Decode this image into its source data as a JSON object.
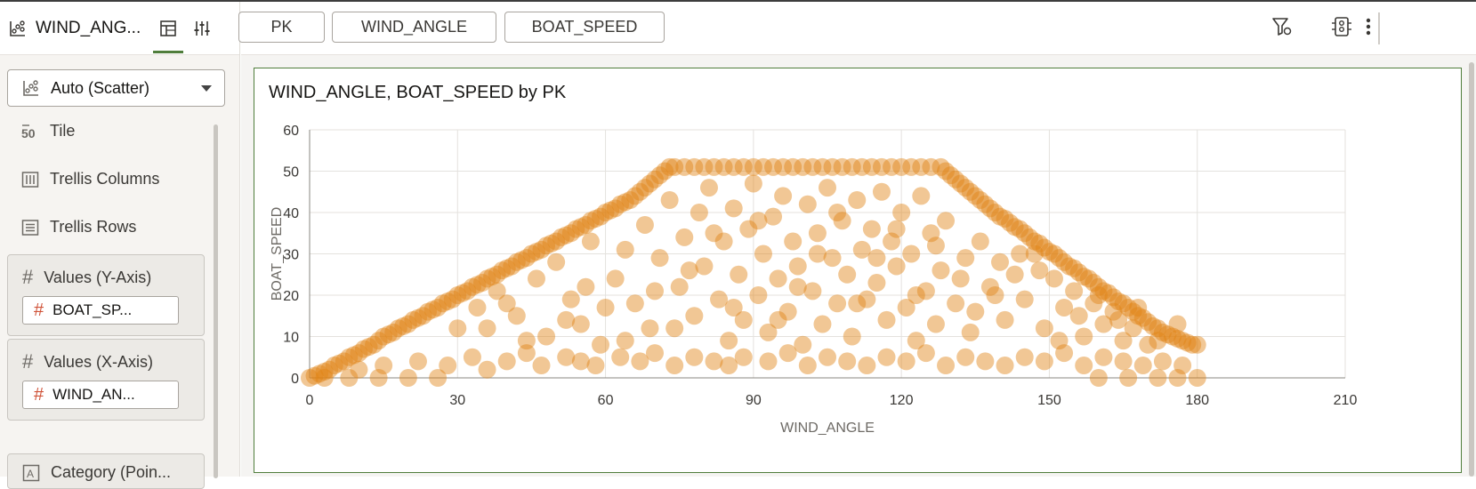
{
  "topbar": {
    "viz_title": "WIND_ANG...",
    "pills": [
      "PK",
      "WIND_ANGLE",
      "BOAT_SPEED"
    ]
  },
  "left_panel": {
    "viz_type": "Auto (Scatter)",
    "rows": [
      "Tile",
      "Trellis Columns",
      "Trellis Rows"
    ],
    "tile_icon_text": "50",
    "y_well": {
      "label": "Values (Y-Axis)",
      "chip": "BOAT_SP..."
    },
    "x_well": {
      "label": "Values (X-Axis)",
      "chip": "WIND_AN..."
    },
    "category_well": {
      "label": "Category (Poin..."
    }
  },
  "colors": {
    "accent": "#4f7d3b",
    "series": "#e08314",
    "measure_hash": "#d0543a"
  },
  "chart_data": {
    "type": "scatter",
    "title": "WIND_ANGLE, BOAT_SPEED by PK",
    "xlabel": "WIND_ANGLE",
    "ylabel": "BOAT_SPEED",
    "xlim": [
      0,
      210
    ],
    "ylim": [
      0,
      60
    ],
    "xticks": [
      "0",
      "30",
      "60",
      "90",
      "120",
      "150",
      "180",
      "210"
    ],
    "yticks": [
      "0",
      "10",
      "20",
      "30",
      "40",
      "50",
      "60"
    ],
    "grid": true,
    "legend": "none",
    "series": [
      {
        "color": "#e08314",
        "points": [
          [
            0,
            0
          ],
          [
            1,
            0.5
          ],
          [
            2,
            1
          ],
          [
            3,
            1.5
          ],
          [
            4,
            2
          ],
          [
            5,
            3
          ],
          [
            6,
            3.5
          ],
          [
            7,
            4
          ],
          [
            8,
            5
          ],
          [
            9,
            5.5
          ],
          [
            10,
            6
          ],
          [
            11,
            7
          ],
          [
            12,
            7.5
          ],
          [
            13,
            8
          ],
          [
            14,
            9
          ],
          [
            15,
            10
          ],
          [
            16,
            10.5
          ],
          [
            17,
            11
          ],
          [
            18,
            12
          ],
          [
            19,
            12.5
          ],
          [
            20,
            13
          ],
          [
            21,
            14
          ],
          [
            22,
            14.5
          ],
          [
            23,
            15
          ],
          [
            24,
            16
          ],
          [
            25,
            16.5
          ],
          [
            26,
            17
          ],
          [
            27,
            18
          ],
          [
            28,
            18.5
          ],
          [
            29,
            19
          ],
          [
            30,
            20
          ],
          [
            31,
            20.5
          ],
          [
            32,
            21
          ],
          [
            33,
            22
          ],
          [
            34,
            22.5
          ],
          [
            35,
            23
          ],
          [
            36,
            24
          ],
          [
            37,
            24.5
          ],
          [
            38,
            25
          ],
          [
            39,
            26
          ],
          [
            40,
            26.5
          ],
          [
            41,
            27
          ],
          [
            42,
            28
          ],
          [
            43,
            28.5
          ],
          [
            44,
            29
          ],
          [
            45,
            30
          ],
          [
            46,
            30.5
          ],
          [
            47,
            31
          ],
          [
            48,
            32
          ],
          [
            49,
            32.5
          ],
          [
            50,
            33
          ],
          [
            51,
            34
          ],
          [
            52,
            34.5
          ],
          [
            53,
            35
          ],
          [
            54,
            36
          ],
          [
            55,
            36.5
          ],
          [
            56,
            37
          ],
          [
            57,
            38
          ],
          [
            58,
            38.5
          ],
          [
            59,
            39
          ],
          [
            60,
            40
          ],
          [
            61,
            40.5
          ],
          [
            62,
            41
          ],
          [
            63,
            42
          ],
          [
            64,
            42.5
          ],
          [
            65,
            43
          ],
          [
            66,
            44
          ],
          [
            67,
            45
          ],
          [
            68,
            46
          ],
          [
            69,
            47
          ],
          [
            70,
            48
          ],
          [
            71,
            49
          ],
          [
            72,
            50
          ],
          [
            73,
            51
          ],
          [
            74,
            51
          ],
          [
            76,
            51
          ],
          [
            78,
            51
          ],
          [
            80,
            51
          ],
          [
            82,
            51
          ],
          [
            84,
            51
          ],
          [
            86,
            51
          ],
          [
            88,
            51
          ],
          [
            90,
            51
          ],
          [
            92,
            51
          ],
          [
            94,
            51
          ],
          [
            96,
            51
          ],
          [
            98,
            51
          ],
          [
            100,
            51
          ],
          [
            102,
            51
          ],
          [
            104,
            51
          ],
          [
            106,
            51
          ],
          [
            108,
            51
          ],
          [
            110,
            51
          ],
          [
            112,
            51
          ],
          [
            114,
            51
          ],
          [
            116,
            51
          ],
          [
            118,
            51
          ],
          [
            120,
            51
          ],
          [
            122,
            51
          ],
          [
            124,
            51
          ],
          [
            126,
            51
          ],
          [
            128,
            51
          ],
          [
            129,
            50
          ],
          [
            130,
            49
          ],
          [
            131,
            48
          ],
          [
            132,
            47
          ],
          [
            133,
            46
          ],
          [
            134,
            45
          ],
          [
            135,
            44
          ],
          [
            136,
            43
          ],
          [
            137,
            42
          ],
          [
            138,
            41
          ],
          [
            139,
            40
          ],
          [
            140,
            39
          ],
          [
            141,
            38.5
          ],
          [
            142,
            37.5
          ],
          [
            143,
            36.5
          ],
          [
            144,
            36
          ],
          [
            145,
            35
          ],
          [
            146,
            34
          ],
          [
            147,
            33
          ],
          [
            148,
            32.5
          ],
          [
            149,
            31.5
          ],
          [
            150,
            30.5
          ],
          [
            151,
            30
          ],
          [
            152,
            29
          ],
          [
            153,
            28
          ],
          [
            154,
            27
          ],
          [
            155,
            26.5
          ],
          [
            156,
            25.5
          ],
          [
            157,
            24.5
          ],
          [
            158,
            24
          ],
          [
            159,
            23
          ],
          [
            160,
            22
          ],
          [
            161,
            21
          ],
          [
            162,
            20.5
          ],
          [
            163,
            19.5
          ],
          [
            164,
            18.5
          ],
          [
            165,
            18
          ],
          [
            166,
            17
          ],
          [
            167,
            16
          ],
          [
            168,
            15
          ],
          [
            169,
            14.5
          ],
          [
            170,
            13.5
          ],
          [
            171,
            12.5
          ],
          [
            172,
            12
          ],
          [
            173,
            11
          ],
          [
            174,
            10.5
          ],
          [
            175,
            10
          ],
          [
            176,
            9.5
          ],
          [
            177,
            9
          ],
          [
            178,
            8.5
          ],
          [
            179,
            8
          ],
          [
            180,
            8
          ],
          [
            3,
            0
          ],
          [
            8,
            0
          ],
          [
            14,
            0
          ],
          [
            20,
            0
          ],
          [
            26,
            0
          ],
          [
            160,
            0
          ],
          [
            166,
            0
          ],
          [
            172,
            0
          ],
          [
            176,
            0
          ],
          [
            180,
            0
          ],
          [
            10,
            2
          ],
          [
            15,
            3
          ],
          [
            22,
            4
          ],
          [
            28,
            3
          ],
          [
            33,
            5
          ],
          [
            36,
            2
          ],
          [
            40,
            4
          ],
          [
            44,
            6
          ],
          [
            47,
            3
          ],
          [
            52,
            5
          ],
          [
            55,
            4
          ],
          [
            58,
            3
          ],
          [
            63,
            5
          ],
          [
            67,
            4
          ],
          [
            70,
            6
          ],
          [
            74,
            3
          ],
          [
            78,
            5
          ],
          [
            82,
            4
          ],
          [
            85,
            3
          ],
          [
            88,
            5
          ],
          [
            93,
            4
          ],
          [
            97,
            6
          ],
          [
            101,
            3
          ],
          [
            105,
            5
          ],
          [
            109,
            4
          ],
          [
            113,
            3
          ],
          [
            117,
            5
          ],
          [
            121,
            4
          ],
          [
            125,
            6
          ],
          [
            129,
            3
          ],
          [
            133,
            5
          ],
          [
            137,
            4
          ],
          [
            141,
            3
          ],
          [
            145,
            5
          ],
          [
            149,
            4
          ],
          [
            153,
            6
          ],
          [
            157,
            3
          ],
          [
            161,
            5
          ],
          [
            165,
            4
          ],
          [
            169,
            3
          ],
          [
            173,
            4
          ],
          [
            177,
            3
          ],
          [
            30,
            12
          ],
          [
            34,
            17
          ],
          [
            38,
            21
          ],
          [
            42,
            15
          ],
          [
            46,
            24
          ],
          [
            48,
            10
          ],
          [
            50,
            28
          ],
          [
            53,
            19
          ],
          [
            55,
            13
          ],
          [
            57,
            33
          ],
          [
            59,
            8
          ],
          [
            62,
            24
          ],
          [
            64,
            31
          ],
          [
            66,
            18
          ],
          [
            68,
            37
          ],
          [
            69,
            12
          ],
          [
            71,
            29
          ],
          [
            73,
            43
          ],
          [
            75,
            22
          ],
          [
            76,
            34
          ],
          [
            78,
            15
          ],
          [
            79,
            40
          ],
          [
            80,
            27
          ],
          [
            81,
            46
          ],
          [
            83,
            19
          ],
          [
            84,
            33
          ],
          [
            85,
            9
          ],
          [
            86,
            41
          ],
          [
            87,
            25
          ],
          [
            88,
            14
          ],
          [
            89,
            36
          ],
          [
            90,
            47
          ],
          [
            91,
            20
          ],
          [
            92,
            30
          ],
          [
            93,
            11
          ],
          [
            94,
            39
          ],
          [
            95,
            24
          ],
          [
            96,
            44
          ],
          [
            97,
            16
          ],
          [
            98,
            33
          ],
          [
            99,
            27
          ],
          [
            100,
            8
          ],
          [
            101,
            42
          ],
          [
            102,
            21
          ],
          [
            103,
            35
          ],
          [
            104,
            13
          ],
          [
            105,
            46
          ],
          [
            106,
            29
          ],
          [
            107,
            18
          ],
          [
            108,
            38
          ],
          [
            109,
            25
          ],
          [
            110,
            10
          ],
          [
            111,
            43
          ],
          [
            112,
            31
          ],
          [
            113,
            19
          ],
          [
            114,
            36
          ],
          [
            115,
            23
          ],
          [
            116,
            45
          ],
          [
            117,
            14
          ],
          [
            118,
            33
          ],
          [
            119,
            27
          ],
          [
            120,
            40
          ],
          [
            121,
            17
          ],
          [
            122,
            30
          ],
          [
            123,
            9
          ],
          [
            124,
            44
          ],
          [
            125,
            21
          ],
          [
            126,
            35
          ],
          [
            127,
            13
          ],
          [
            128,
            26
          ],
          [
            129,
            38
          ],
          [
            131,
            18
          ],
          [
            133,
            29
          ],
          [
            134,
            11
          ],
          [
            136,
            33
          ],
          [
            138,
            22
          ],
          [
            140,
            28
          ],
          [
            141,
            14
          ],
          [
            143,
            25
          ],
          [
            145,
            19
          ],
          [
            147,
            30
          ],
          [
            149,
            12
          ],
          [
            151,
            24
          ],
          [
            153,
            17
          ],
          [
            155,
            21
          ],
          [
            157,
            10
          ],
          [
            159,
            18
          ],
          [
            161,
            13
          ],
          [
            163,
            16
          ],
          [
            165,
            9
          ],
          [
            167,
            12
          ],
          [
            170,
            8
          ],
          [
            36,
            12
          ],
          [
            40,
            18
          ],
          [
            44,
            9
          ],
          [
            52,
            14
          ],
          [
            56,
            22
          ],
          [
            60,
            17
          ],
          [
            64,
            9
          ],
          [
            70,
            21
          ],
          [
            74,
            12
          ],
          [
            77,
            26
          ],
          [
            82,
            35
          ],
          [
            86,
            17
          ],
          [
            91,
            38
          ],
          [
            95,
            14
          ],
          [
            99,
            22
          ],
          [
            103,
            30
          ],
          [
            107,
            40
          ],
          [
            111,
            18
          ],
          [
            115,
            29
          ],
          [
            119,
            36
          ],
          [
            123,
            20
          ],
          [
            127,
            32
          ],
          [
            132,
            24
          ],
          [
            135,
            16
          ],
          [
            139,
            20
          ],
          [
            144,
            30
          ],
          [
            148,
            26
          ],
          [
            152,
            9
          ],
          [
            156,
            15
          ],
          [
            160,
            20
          ],
          [
            164,
            14
          ],
          [
            168,
            17
          ],
          [
            172,
            9
          ],
          [
            176,
            13
          ]
        ]
      }
    ]
  }
}
